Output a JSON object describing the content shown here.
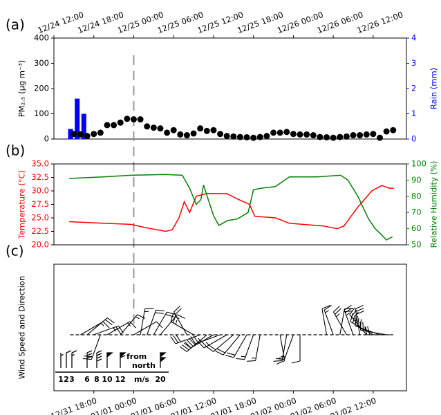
{
  "chart_data": [
    {
      "type": "combo",
      "label": "(a)",
      "xlim": [
        0,
        53
      ],
      "xticks": [
        {
          "value": 0,
          "label": "12/24 12:00"
        },
        {
          "value": 6,
          "label": "12/24 18:00"
        },
        {
          "value": 12,
          "label": "12/25 00:00"
        },
        {
          "value": 18,
          "label": "12/25 06:00"
        },
        {
          "value": 24,
          "label": "12/25 12:00"
        },
        {
          "value": 30,
          "label": "12/25 18:00"
        },
        {
          "value": 36,
          "label": "12/26 00:00"
        },
        {
          "value": 42,
          "label": "12/26 06:00"
        },
        {
          "value": 48,
          "label": "12/26 12:00"
        }
      ],
      "ylabel": "PM₂.₅ (μg m⁻³)",
      "ylim": [
        0,
        400
      ],
      "yticks": [
        0,
        100,
        200,
        300,
        400
      ],
      "y2label": "Rain (mm)",
      "y2lim": [
        0,
        4
      ],
      "y2ticks": [
        0,
        1,
        2,
        3,
        4
      ],
      "y2color": "#0000ff",
      "vline": 12,
      "series": [
        {
          "type": "bar",
          "color": "#0000ff",
          "axis": "y2",
          "x": [
            2.5,
            3.5,
            4.5
          ],
          "values": [
            0.4,
            1.6,
            1.0
          ]
        },
        {
          "type": "scatter",
          "color": "#000000",
          "x": [
            3,
            4,
            5,
            6,
            7,
            8,
            9,
            10,
            11,
            12,
            13,
            14,
            15,
            16,
            17,
            18,
            19,
            20,
            21,
            22,
            23,
            24,
            25,
            26,
            27,
            28,
            29,
            30,
            31,
            32,
            33,
            34,
            35,
            36,
            37,
            38,
            39,
            40,
            41,
            42,
            43,
            44,
            45,
            46,
            47,
            48,
            49,
            50,
            51
          ],
          "values": [
            20,
            18,
            12,
            20,
            25,
            55,
            55,
            65,
            80,
            78,
            78,
            50,
            45,
            42,
            25,
            35,
            18,
            15,
            22,
            42,
            32,
            35,
            20,
            12,
            10,
            8,
            7,
            5,
            8,
            12,
            25,
            25,
            28,
            20,
            18,
            18,
            15,
            8,
            7,
            5,
            8,
            10,
            15,
            15,
            18,
            20,
            5,
            30,
            35
          ]
        }
      ]
    },
    {
      "type": "line",
      "label": "(b)",
      "xlim": [
        0,
        53
      ],
      "ylabel": "Temperature (°C)",
      "ylim": [
        20,
        35
      ],
      "yticks": [
        {
          "value": 20,
          "label": "20.0"
        },
        {
          "value": 22.5,
          "label": "22.5"
        },
        {
          "value": 25,
          "label": "25.0"
        },
        {
          "value": 27.5,
          "label": "27.5"
        },
        {
          "value": 30,
          "label": "30.0"
        },
        {
          "value": 32.5,
          "label": "32.5"
        },
        {
          "value": 35,
          "label": "35.0"
        }
      ],
      "ycolor": "#ff0000",
      "y2label": "Relative Humidity (%)",
      "y2lim": [
        50,
        100
      ],
      "y2ticks": [
        50,
        60,
        70,
        80,
        90,
        100
      ],
      "y2color": "#008000",
      "series": [
        {
          "color": "#ff0000",
          "x": [
            2.3,
            7.4,
            11.6,
            13.7,
            16.8,
            17.8,
            18.8,
            19.6,
            20.4,
            21.4,
            23,
            26,
            27.6,
            29.4,
            30.2,
            33.3,
            35.4,
            37.4,
            40.5,
            42.6,
            43.6,
            45.7,
            47.8,
            49.3,
            50.4,
            51.1
          ],
          "values": [
            24.3,
            24,
            23.8,
            23.2,
            22.5,
            22.8,
            25,
            28,
            26,
            29,
            29.5,
            29.5,
            28.5,
            27.5,
            25.3,
            25,
            24,
            23.8,
            23.5,
            23,
            23.5,
            27,
            30,
            31,
            30.5,
            30.5
          ]
        },
        {
          "color": "#008000",
          "axis": "y2",
          "x": [
            2.3,
            7.4,
            11.6,
            16.8,
            19.3,
            20.4,
            21.4,
            22.1,
            22.5,
            23.2,
            24,
            24.8,
            26.1,
            27.6,
            29.2,
            30,
            31.2,
            33.3,
            35.4,
            39.5,
            43.1,
            44.2,
            45.7,
            47.3,
            48.3,
            49.3,
            50,
            50.9
          ],
          "values": [
            91,
            92,
            93,
            93.5,
            93,
            85,
            75,
            78,
            87,
            78,
            68,
            62,
            65,
            66,
            70,
            84,
            85,
            86,
            92,
            92,
            93,
            90,
            80,
            66,
            60,
            56,
            53,
            55
          ]
        }
      ]
    },
    {
      "type": "barbs",
      "label": "(c)",
      "xlim": [
        0,
        53
      ],
      "ylabel": "Wind Speed and Direction",
      "xticks": [
        {
          "value": 6,
          "label": "12/31 18:00"
        },
        {
          "value": 12,
          "label": "01/01 00:00"
        },
        {
          "value": 18,
          "label": "01/01 06:00"
        },
        {
          "value": 24,
          "label": "01/01 12:00"
        },
        {
          "value": 30,
          "label": "01/01 18:00"
        },
        {
          "value": 36,
          "label": "01/02 00:00"
        },
        {
          "value": 42,
          "label": "01/02 06:00"
        },
        {
          "value": 48,
          "label": "01/02 12:00"
        }
      ],
      "x": [
        4,
        5,
        6,
        7,
        8,
        10,
        12,
        13,
        14,
        15,
        16,
        20,
        21,
        22,
        23,
        24,
        25,
        26,
        27,
        28,
        29,
        30,
        31,
        34,
        35,
        36,
        37,
        41,
        42,
        43,
        44,
        45,
        46,
        47,
        48,
        49,
        50,
        51
      ],
      "speed": [
        3,
        4,
        5,
        4,
        3,
        3,
        2,
        3,
        4,
        4,
        3,
        4,
        5,
        6,
        6,
        6,
        5,
        5,
        4,
        4,
        4,
        3,
        3,
        2,
        3,
        3,
        2,
        2,
        3,
        4,
        5,
        5,
        6,
        6,
        6,
        6,
        5,
        4
      ],
      "direction": [
        60,
        50,
        70,
        200,
        60,
        40,
        60,
        10,
        20,
        30,
        40,
        330,
        300,
        250,
        230,
        240,
        250,
        240,
        230,
        220,
        210,
        200,
        190,
        170,
        190,
        200,
        180,
        350,
        340,
        10,
        330,
        340,
        350,
        320,
        300,
        290,
        280,
        270
      ],
      "key": {
        "speeds": [
          1,
          2,
          3,
          6,
          8,
          10,
          12,
          20
        ],
        "unit": "m/s",
        "note": "from north"
      }
    }
  ]
}
